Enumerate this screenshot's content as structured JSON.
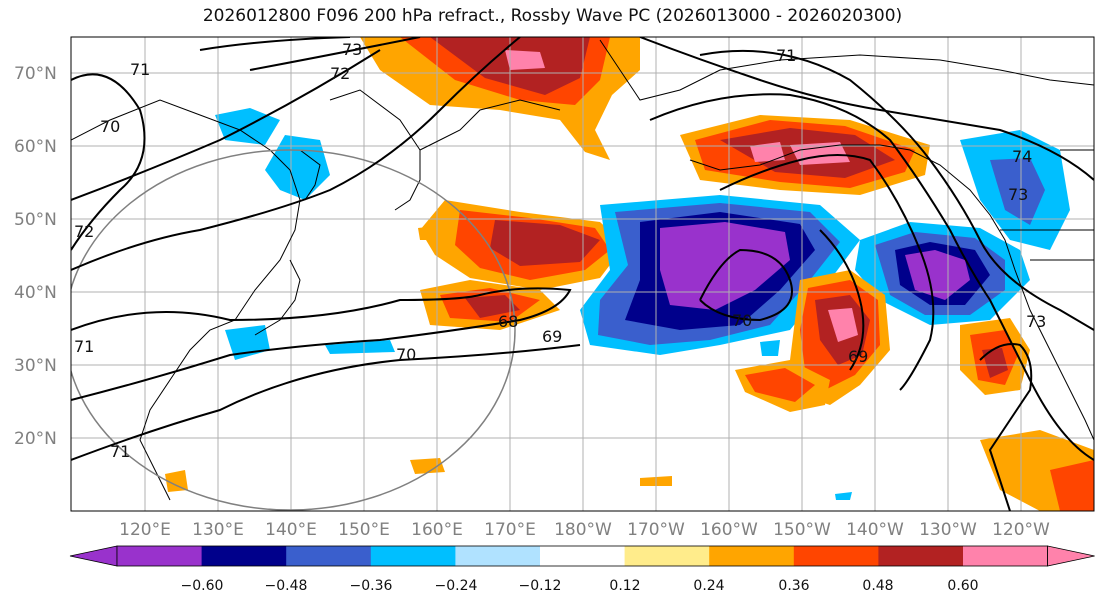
{
  "title": "2026012800 F096 200 hPa refract., Rossby Wave PC (2026013000 - 2026020300)",
  "map": {
    "lat_ticks": [
      "70°N",
      "60°N",
      "50°N",
      "40°N",
      "30°N",
      "20°N"
    ],
    "lon_ticks": [
      "120°E",
      "130°E",
      "140°E",
      "150°E",
      "160°E",
      "170°E",
      "180°W",
      "170°W",
      "160°W",
      "150°W",
      "140°W",
      "130°W",
      "120°W"
    ],
    "contour_labels": [
      "73",
      "72",
      "71",
      "70",
      "71",
      "70",
      "68",
      "69",
      "70",
      "69",
      "71",
      "73",
      "74",
      "73",
      "72",
      "71"
    ]
  },
  "colorbar": {
    "colors": [
      "#9932cc",
      "#00008b",
      "#3a5fcd",
      "#00bfff",
      "#b0e2ff",
      "#ffffff",
      "#ffec8b",
      "#ffa500",
      "#ff4500",
      "#b22222",
      "#ff82ab"
    ],
    "ticks": [
      "−0.60",
      "−0.48",
      "−0.36",
      "−0.24",
      "−0.12",
      "0.12",
      "0.24",
      "0.36",
      "0.48",
      "0.60"
    ]
  }
}
